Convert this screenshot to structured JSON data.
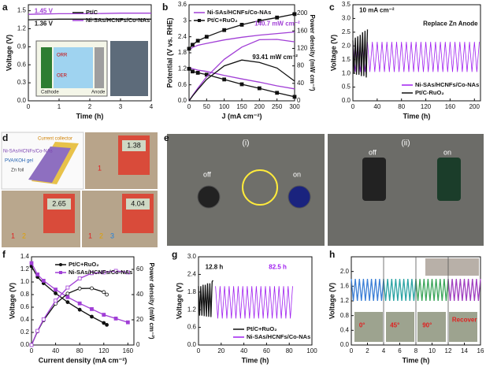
{
  "panels": [
    "a",
    "b",
    "c",
    "d",
    "e",
    "f",
    "g",
    "h"
  ],
  "photos": {
    "a_inset": [
      "Cathode",
      "Anode",
      "ORR",
      "OER"
    ],
    "d": {
      "layers": [
        "Current collector",
        "Ni-SAs/HCNFs/Co-NAs",
        "PVA/KOH gel",
        "Zn foil"
      ],
      "readings": [
        "1.38",
        "2.65",
        "4.04"
      ],
      "numbers": [
        "1",
        "2",
        "3"
      ]
    },
    "e": {
      "parts": [
        "(i)",
        "(ii)"
      ],
      "states": [
        "off",
        "on"
      ]
    }
  },
  "chart_data": [
    {
      "type": "line",
      "xlabel": "Time (h)",
      "ylabel": "Voltage (V)",
      "xlim": [
        0,
        4
      ],
      "ylim": [
        0,
        1.6
      ],
      "xticks": [
        0,
        1,
        2,
        3,
        4
      ],
      "yticks": [
        {
          "value": 0,
          "label": "0.0"
        },
        0.3,
        0.6,
        0.9,
        1.2,
        1.5
      ],
      "legend": "upper right",
      "x": [
        0,
        1,
        2,
        3,
        4
      ],
      "series": [
        {
          "name": "Pt/C",
          "color": "#111111",
          "values": [
            1.35,
            1.36,
            1.36,
            1.36,
            1.36
          ]
        },
        {
          "name": "Ni-SAs/HCNFs/Co-NAs",
          "color": "#a13fd6",
          "values": [
            1.44,
            1.45,
            1.45,
            1.46,
            1.46
          ]
        }
      ],
      "annotations": [
        {
          "text": "1.45 V",
          "color": "#a13fd6"
        },
        {
          "text": "1.36 V",
          "color": "#111111"
        }
      ]
    },
    {
      "type": "line",
      "xlabel": "J (mA cm⁻²)",
      "ylabel": "Potential (V vs. RHE)",
      "y2label": "Power density (mW cm⁻²)",
      "xlim": [
        0,
        300
      ],
      "ylim": [
        0,
        3.6
      ],
      "y2lim": [
        0,
        220
      ],
      "xticks": [
        0,
        50,
        100,
        150,
        200,
        250,
        300
      ],
      "yticks": [
        {
          "value": 0,
          "label": "0.0"
        },
        0.6,
        1.2,
        1.8,
        2.4,
        3.0,
        3.6
      ],
      "y2ticks": [
        0,
        40,
        80,
        120,
        160,
        200
      ],
      "legend": "upper left",
      "x": [
        0,
        10,
        25,
        50,
        100,
        150,
        200,
        250,
        300
      ],
      "series": [
        {
          "name": "Ni-SAs/HCNFs/Co-NAs",
          "color": "#a13fd6",
          "values": [
            1.9,
            2.0,
            2.08,
            2.15,
            2.28,
            2.38,
            2.46,
            2.52,
            2.58
          ]
        },
        {
          "name": "Pt/C+RuO₂",
          "color": "#111111",
          "marker": "square",
          "values": [
            1.95,
            2.1,
            2.25,
            2.4,
            2.65,
            2.85,
            3.0,
            3.12,
            3.25
          ]
        },
        {
          "color": "#a13fd6",
          "values": [
            1.25,
            1.2,
            1.15,
            1.1,
            0.95,
            0.82,
            0.7,
            0.56,
            0.45
          ]
        },
        {
          "color": "#111111",
          "marker": "square",
          "values": [
            1.2,
            1.1,
            1.05,
            0.98,
            0.8,
            0.62,
            0.47,
            0.3,
            0.15
          ]
        },
        {
          "color": "#a13fd6",
          "axis": "y2",
          "values": [
            0,
            12,
            29,
            55,
            95,
            123,
            140,
            140.7,
            135
          ]
        },
        {
          "color": "#111111",
          "axis": "y2",
          "values": [
            0,
            11,
            26,
            49,
            80,
            93.41,
            88,
            75,
            45
          ]
        }
      ],
      "annotations": [
        {
          "text": "140.7 mW cm⁻²",
          "color": "#a13fd6"
        },
        {
          "text": "93.41 mW cm⁻²",
          "color": "#111111"
        }
      ]
    },
    {
      "type": "line",
      "xlabel": "Time (h)",
      "ylabel": "Voltage (V)",
      "xlim": [
        0,
        210
      ],
      "ylim": [
        0,
        3.5
      ],
      "xticks": [
        0,
        40,
        80,
        120,
        160,
        200
      ],
      "yticks": [
        {
          "value": 0,
          "label": "0.0"
        },
        0.5,
        {
          "value": 1,
          "label": "1.0"
        },
        1.5,
        {
          "value": 2,
          "label": "2.0"
        },
        2.5,
        {
          "value": 3,
          "label": "3.0"
        },
        3.5
      ],
      "legend": "lower right",
      "series": [
        {
          "name": "Ni-SAs/HCNFs/Co-NAs",
          "color": "#a020f0",
          "x": [
            0,
            4,
            8,
            12,
            16,
            20,
            24,
            28,
            32,
            36,
            40,
            44,
            48,
            52,
            56,
            60,
            64,
            68,
            72,
            76,
            80,
            84,
            88,
            92,
            96,
            100,
            104,
            108,
            112,
            116,
            120,
            124,
            128,
            132,
            136,
            140,
            144,
            148,
            152,
            156,
            160,
            164,
            168,
            172,
            176,
            180,
            184,
            188,
            192,
            196,
            200,
            204,
            208
          ],
          "values": [
            2.15,
            1.05,
            2.15,
            1.05,
            2.15,
            1.05,
            2.15,
            1.05,
            2.15,
            1.05,
            2.15,
            1.05,
            2.15,
            1.05,
            2.15,
            1.05,
            2.15,
            1.05,
            2.15,
            1.05,
            2.15,
            1.05,
            2.15,
            1.05,
            2.15,
            1.05,
            2.15,
            1.05,
            2.15,
            1.05,
            2.15,
            1.05,
            2.15,
            1.05,
            2.15,
            1.05,
            2.15,
            1.05,
            2.15,
            1.05,
            2.15,
            1.05,
            2.15,
            1.05,
            2.15,
            1.05,
            2.15,
            1.05,
            2.15,
            1.05,
            2.15,
            1.05,
            2.15
          ]
        },
        {
          "name": "Pt/C-RuO₂",
          "color": "#111111",
          "x": [
            0,
            2,
            4,
            6,
            8,
            10,
            12,
            14,
            16,
            18,
            20,
            22,
            24
          ],
          "values": [
            2.2,
            1.0,
            2.3,
            0.95,
            2.35,
            0.95,
            2.4,
            0.9,
            2.5,
            0.9,
            2.55,
            0.85,
            2.6
          ]
        }
      ],
      "annotations": [
        {
          "text": "10 mA cm⁻²",
          "color": "#111111"
        },
        {
          "text": "Replace Zn Anode",
          "color": "#111111"
        }
      ]
    },
    {
      "type": "line",
      "xlabel": "Current density (mA cm⁻²)",
      "ylabel": "Voltage (V)",
      "y2label": "Power density (mW cm⁻²)",
      "xlim": [
        0,
        170
      ],
      "ylim": [
        0,
        1.4
      ],
      "y2lim": [
        0,
        70
      ],
      "xticks": [
        0,
        40,
        80,
        120,
        160
      ],
      "yticks": [
        {
          "value": 0,
          "label": "0.0"
        },
        0.2,
        0.4,
        0.6,
        0.8,
        {
          "value": 1,
          "label": "1.0"
        },
        1.2,
        1.4
      ],
      "y2ticks": [
        0,
        20,
        40,
        60
      ],
      "legend": "upper right",
      "series": [
        {
          "name": "Pt/C+RuO₂",
          "color": "#111111",
          "marker": "circle",
          "x": [
            0,
            10,
            20,
            40,
            60,
            80,
            100,
            120,
            125
          ],
          "values": [
            1.25,
            1.08,
            0.98,
            0.82,
            0.68,
            0.56,
            0.45,
            0.35,
            0.32
          ]
        },
        {
          "name": "Ni-SAs/HCNFs/Co-NAs",
          "color": "#a13fd6",
          "marker": "square",
          "x": [
            0,
            10,
            20,
            40,
            60,
            80,
            100,
            120,
            140,
            160
          ],
          "values": [
            1.3,
            1.12,
            1.02,
            0.88,
            0.76,
            0.66,
            0.57,
            0.48,
            0.42,
            0.36
          ]
        },
        {
          "color": "#111111",
          "marker": "circle",
          "open": true,
          "axis": "y2",
          "x": [
            0,
            10,
            20,
            40,
            60,
            80,
            100,
            120,
            125
          ],
          "values": [
            0,
            10.8,
            19.6,
            32.8,
            40.8,
            44.8,
            45,
            42,
            40
          ]
        },
        {
          "color": "#a13fd6",
          "marker": "square",
          "open": true,
          "axis": "y2",
          "x": [
            0,
            10,
            20,
            40,
            60,
            80,
            100,
            120,
            140,
            160
          ],
          "values": [
            0,
            11.2,
            20.4,
            35.2,
            45.6,
            52.8,
            57,
            57.6,
            58.8,
            57.6
          ]
        }
      ],
      "annotations": []
    },
    {
      "type": "line",
      "xlabel": "Time (h)",
      "ylabel": "Voltage (V)",
      "xlim": [
        0,
        100
      ],
      "ylim": [
        0,
        3
      ],
      "xticks": [
        0,
        20,
        40,
        60,
        80,
        100
      ],
      "yticks": [
        {
          "value": 0,
          "label": "0.0"
        },
        0.6,
        1.2,
        1.8,
        2.4,
        {
          "value": 3,
          "label": "3.0"
        }
      ],
      "legend": "lower right",
      "series": [
        {
          "name": "Pt/C+RuO₂",
          "color": "#111111",
          "x": [
            0,
            1,
            2,
            3,
            4,
            5,
            6,
            7,
            8,
            9,
            10,
            11,
            12,
            12.8
          ],
          "values": [
            2.0,
            1.0,
            2.0,
            1.0,
            2.05,
            0.98,
            2.05,
            0.97,
            2.1,
            0.96,
            2.1,
            0.95,
            2.15,
            2.2
          ]
        },
        {
          "name": "Ni-SAs/HCNFs/Co-NAs",
          "color": "#a020f0",
          "x": [
            15,
            17,
            19,
            21,
            23,
            25,
            27,
            29,
            31,
            33,
            35,
            37,
            39,
            41,
            43,
            45,
            47,
            49,
            51,
            53,
            55,
            57,
            59,
            61,
            63,
            65,
            67,
            69,
            71,
            73,
            75,
            77,
            79,
            81,
            83
          ],
          "values": [
            2.0,
            0.9,
            2.0,
            0.9,
            2.0,
            0.9,
            2.0,
            0.9,
            2.0,
            0.9,
            2.0,
            0.9,
            2.0,
            0.9,
            2.0,
            0.9,
            2.0,
            0.9,
            2.0,
            0.9,
            2.0,
            0.9,
            2.0,
            0.9,
            2.0,
            0.9,
            2.0,
            0.9,
            2.0,
            0.9,
            2.0,
            0.9,
            2.0,
            0.9,
            2.0
          ]
        }
      ],
      "annotations": [
        {
          "text": "12.8 h",
          "color": "#111111"
        },
        {
          "text": "82.5 h",
          "color": "#a020f0"
        }
      ]
    },
    {
      "type": "line",
      "xlabel": "Time (h)",
      "ylabel": "Voltage (V)",
      "xlim": [
        0,
        16
      ],
      "ylim": [
        0,
        2.4
      ],
      "xticks": [
        0,
        2,
        4,
        6,
        8,
        10,
        12,
        14,
        16
      ],
      "yticks": [
        {
          "value": 0,
          "label": "0.0"
        },
        0.4,
        0.8,
        1.2,
        1.6,
        {
          "value": 2,
          "label": "2.0"
        }
      ],
      "series": [
        {
          "color": "#3b7fd6",
          "x": [
            0,
            0.25,
            0.5,
            0.75,
            1,
            1.25,
            1.5,
            1.75,
            2,
            2.25,
            2.5,
            2.75,
            3,
            3.25,
            3.5,
            3.75,
            4
          ],
          "values": [
            1.8,
            1.2,
            1.8,
            1.2,
            1.8,
            1.2,
            1.8,
            1.2,
            1.8,
            1.2,
            1.8,
            1.2,
            1.8,
            1.2,
            1.8,
            1.2,
            1.8
          ]
        },
        {
          "color": "#2aa3a3",
          "x": [
            4,
            4.25,
            4.5,
            4.75,
            5,
            5.25,
            5.5,
            5.75,
            6,
            6.25,
            6.5,
            6.75,
            7,
            7.25,
            7.5,
            7.75,
            8
          ],
          "values": [
            1.8,
            1.2,
            1.8,
            1.2,
            1.8,
            1.2,
            1.8,
            1.2,
            1.8,
            1.2,
            1.8,
            1.2,
            1.8,
            1.2,
            1.8,
            1.2,
            1.8
          ]
        },
        {
          "color": "#3aa55a",
          "x": [
            8,
            8.25,
            8.5,
            8.75,
            9,
            9.25,
            9.5,
            9.75,
            10,
            10.25,
            10.5,
            10.75,
            11,
            11.25,
            11.5,
            11.75,
            12
          ],
          "values": [
            1.8,
            1.2,
            1.8,
            1.2,
            1.8,
            1.2,
            1.8,
            1.2,
            1.8,
            1.2,
            1.8,
            1.2,
            1.8,
            1.2,
            1.8,
            1.2,
            1.8
          ]
        },
        {
          "color": "#a040c0",
          "x": [
            12,
            12.25,
            12.5,
            12.75,
            13,
            13.25,
            13.5,
            13.75,
            14,
            14.25,
            14.5,
            14.75,
            15,
            15.25,
            15.5,
            15.75,
            16
          ],
          "values": [
            1.8,
            1.2,
            1.8,
            1.2,
            1.8,
            1.2,
            1.8,
            1.2,
            1.8,
            1.2,
            1.8,
            1.2,
            1.8,
            1.2,
            1.8,
            1.2,
            1.8
          ]
        }
      ],
      "annotations": [
        {
          "text": "0°",
          "color": "#e02020"
        },
        {
          "text": "45°",
          "color": "#e02020"
        },
        {
          "text": "90°",
          "color": "#e02020"
        },
        {
          "text": "Recover",
          "color": "#e02020"
        }
      ]
    }
  ]
}
